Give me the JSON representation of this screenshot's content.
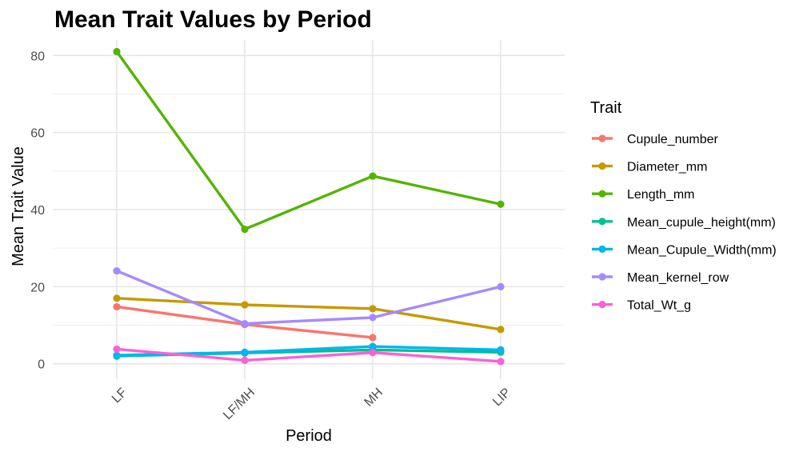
{
  "chart_data": {
    "type": "line",
    "title": "Mean Trait Values by Period",
    "xlabel": "Period",
    "ylabel": "Mean Trait Value",
    "categories": [
      "LF",
      "LF/MH",
      "MH",
      "LIP"
    ],
    "ylim": [
      -4,
      84
    ],
    "yticks": [
      0,
      20,
      40,
      60,
      80
    ],
    "grid": true,
    "legend": {
      "title": "Trait",
      "position": "right"
    },
    "series": [
      {
        "name": "Cupule_number",
        "color": "#F8766D",
        "values": [
          14.8,
          10.2,
          6.8,
          null
        ]
      },
      {
        "name": "Diameter_mm",
        "color": "#C49A00",
        "values": [
          17.0,
          15.3,
          14.3,
          8.9
        ]
      },
      {
        "name": "Length_mm",
        "color": "#53B400",
        "values": [
          81.0,
          34.9,
          48.7,
          41.4
        ]
      },
      {
        "name": "Mean_cupule_height(mm)",
        "color": "#00C094",
        "values": [
          2.0,
          2.8,
          3.6,
          3.0
        ]
      },
      {
        "name": "Mean_Cupule_Width(mm)",
        "color": "#00B6EB",
        "values": [
          2.2,
          3.0,
          4.5,
          3.6
        ]
      },
      {
        "name": "Mean_kernel_row",
        "color": "#A58AFF",
        "values": [
          24.1,
          10.4,
          12.0,
          20.0
        ]
      },
      {
        "name": "Total_Wt_g",
        "color": "#FB61D7",
        "values": [
          3.8,
          0.9,
          2.9,
          0.6
        ]
      }
    ]
  }
}
